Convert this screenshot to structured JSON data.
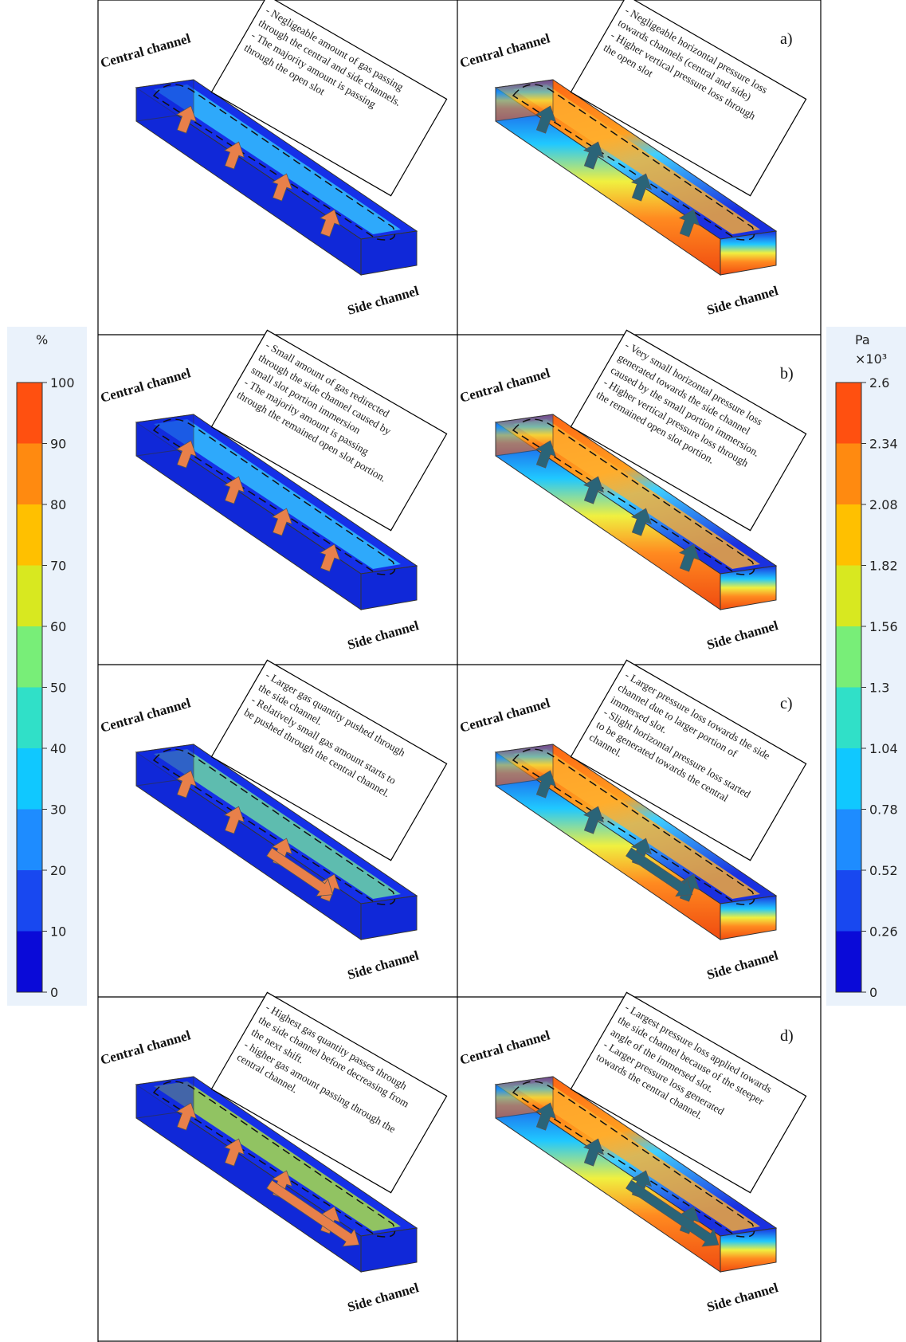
{
  "panels": [
    {
      "letter": "a)",
      "central_label": "Central channel",
      "side_label": "Side channel",
      "gas_note": [
        "- Negligeable amount of gas passing",
        "through the central and side channels.",
        "- The majority amount is passing",
        "through the open slot"
      ],
      "pressure_note": [
        "- Negligeable horizontal pressure loss",
        "towards channels (central and side)",
        "- Higher vertical pressure loss through",
        "the open slot"
      ]
    },
    {
      "letter": "b)",
      "central_label": "Central channel",
      "side_label": "Side channel",
      "gas_note": [
        "- Small amount of gas redirected",
        "through the side channel caused by",
        "small slot portion immersion",
        "- The majority amount is passing",
        "through the remained open slot portion."
      ],
      "pressure_note": [
        "- Very small horizontal pressure loss",
        "generated towards the side channel",
        "caused by the small portion immersion.",
        "- Higher vertical pressure loss through",
        "the remained open slot portion."
      ]
    },
    {
      "letter": "c)",
      "central_label": "Central channel",
      "side_label": "Side channel",
      "gas_note": [
        "- Larger gas quantity pushed through",
        "the side channel.",
        "- Relatively small gas amount starts to",
        "be pushed through the central channel."
      ],
      "pressure_note": [
        "- Larger pressure loss towards the side",
        "channel due to larger portion of",
        "immersed slot.",
        "- Slight horizontal pressure loss started",
        "to be generated towards the central",
        "channel."
      ]
    },
    {
      "letter": "d)",
      "central_label": "Central channel",
      "side_label": "Side channel",
      "gas_note": [
        "- Highest gas quantity passes through",
        "the side channel before decreasing from",
        "the next shift.",
        "- higher gas amount passing through the",
        "central channel."
      ],
      "pressure_note": [
        "- Largest pressure loss applied towards",
        "the side channel because of the steeper",
        "angle of the immersed slot.",
        "- Larger pressure loss generated",
        "towards the central channel."
      ]
    }
  ],
  "gas_colorbar": {
    "title": "%",
    "ticks": [
      0,
      10,
      20,
      30,
      40,
      50,
      60,
      70,
      80,
      90,
      100
    ]
  },
  "pressure_colorbar": {
    "title": "Pa",
    "multiplier": "×10³",
    "ticks": [
      0,
      0.26,
      0.52,
      0.78,
      1.04,
      1.3,
      1.56,
      1.82,
      2.08,
      2.34,
      2.6
    ]
  }
}
